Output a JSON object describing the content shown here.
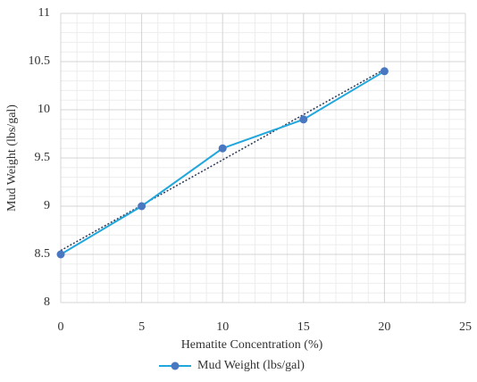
{
  "chart_data": {
    "type": "line",
    "x_label": "Hematite Concentration (%)",
    "y_label": "Mud Weight (lbs/gal)",
    "x": [
      0,
      5,
      10,
      15,
      20
    ],
    "series": [
      {
        "name": "Mud Weight (lbs/gal)",
        "color": "#22a7dc",
        "marker_color": "#4a78c0",
        "values": [
          8.5,
          9.0,
          9.6,
          9.9,
          10.4
        ]
      }
    ],
    "xlim": [
      0,
      25
    ],
    "xticks": [
      0,
      5,
      10,
      15,
      20,
      25
    ],
    "ylim": [
      8,
      11
    ],
    "yticks": [
      8,
      8.5,
      9,
      9.5,
      10,
      10.5,
      11
    ],
    "grid": true,
    "minor_grid": true,
    "trendline": true,
    "legend": "bottom"
  }
}
